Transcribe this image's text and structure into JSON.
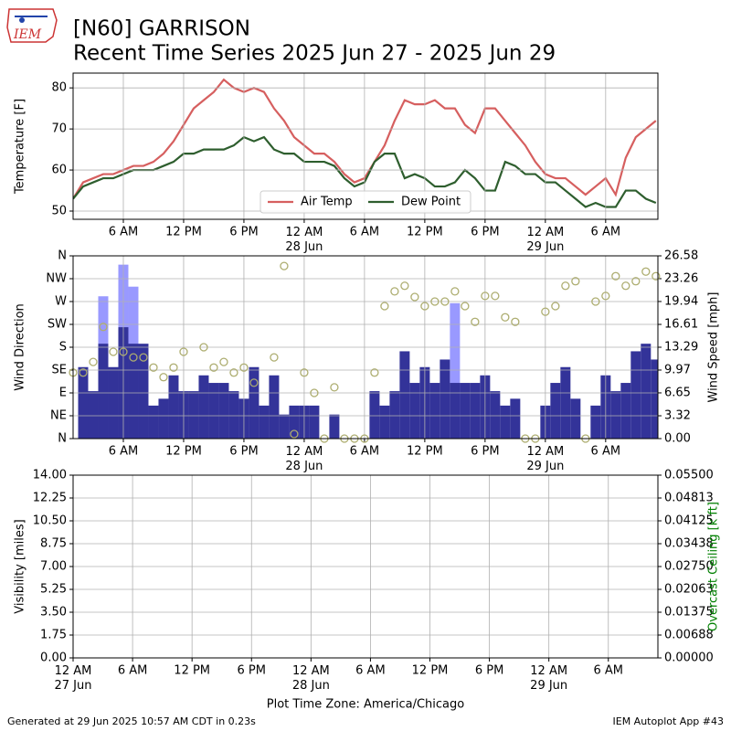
{
  "header": {
    "logo": "IEM",
    "title": "[N60] GARRISON",
    "subtitle": "Recent Time Series 2025 Jun 27 - 2025 Jun 29"
  },
  "footer": {
    "generated": "Generated at 29 Jun 2025 10:57 AM CDT in 0.23s",
    "app": "IEM Autoplot App #43"
  },
  "chart_data": [
    {
      "type": "line",
      "ylabel": "Temperature [F]",
      "legend": "lower center",
      "grid": true,
      "x": [
        1,
        2,
        3,
        4,
        5,
        6,
        7,
        8,
        9,
        10,
        11,
        12,
        13,
        14,
        15,
        16,
        17,
        18,
        19,
        20,
        21,
        22,
        23,
        24,
        25,
        26,
        27,
        28,
        29,
        30,
        31,
        32,
        33,
        34,
        35,
        36,
        37,
        38,
        39,
        40,
        41,
        42,
        43,
        44,
        45,
        46,
        47,
        48,
        49,
        50,
        51,
        52,
        53,
        54,
        55,
        56,
        57,
        58,
        59
      ],
      "xlim": [
        1,
        59.2
      ],
      "xticks": [
        {
          "value": 6,
          "label": "6 AM"
        },
        {
          "value": 12,
          "label": "12 PM"
        },
        {
          "value": 18,
          "label": "6 PM"
        },
        {
          "value": 24,
          "label": "12 AM\n28 Jun"
        },
        {
          "value": 30,
          "label": "6 AM"
        },
        {
          "value": 36,
          "label": "12 PM"
        },
        {
          "value": 42,
          "label": "6 PM"
        },
        {
          "value": 48,
          "label": "12 AM\n29 Jun"
        },
        {
          "value": 54,
          "label": "6 AM"
        }
      ],
      "ylim": [
        48,
        83.6
      ],
      "yticks": [
        50,
        60,
        70,
        80
      ],
      "series": [
        {
          "name": "Air Temp",
          "color": "#d65f5f",
          "values": [
            53,
            57,
            58,
            59,
            59,
            60,
            61,
            61,
            62,
            64,
            67,
            71,
            75,
            77,
            79,
            82,
            80,
            79,
            80,
            79,
            75,
            72,
            68,
            66,
            64,
            64,
            62,
            59,
            57,
            58,
            62,
            66,
            72,
            77,
            76,
            76,
            77,
            75,
            75,
            71,
            69,
            75,
            75,
            72,
            69,
            66,
            62,
            59,
            58,
            58,
            56,
            54,
            56,
            58,
            54,
            63,
            68,
            70,
            72
          ]
        },
        {
          "name": "Dew Point",
          "color": "#2e5e2e",
          "values": [
            53,
            56,
            57,
            58,
            58,
            59,
            60,
            60,
            60,
            61,
            62,
            64,
            64,
            65,
            65,
            65,
            66,
            68,
            67,
            68,
            65,
            64,
            64,
            62,
            62,
            62,
            61,
            58,
            56,
            57,
            62,
            64,
            64,
            58,
            59,
            58,
            56,
            56,
            57,
            60,
            58,
            55,
            55,
            62,
            61,
            59,
            59,
            57,
            57,
            55,
            53,
            51,
            52,
            51,
            51,
            55,
            55,
            53,
            52
          ]
        }
      ]
    },
    {
      "type": "bar",
      "ylabel": "Wind Direction",
      "y2label": "Wind Speed [mph]",
      "grid": true,
      "x": [
        1,
        2,
        3,
        4,
        5,
        6,
        7,
        8,
        9,
        10,
        11,
        12,
        13,
        14,
        15,
        16,
        17,
        18,
        19,
        20,
        21,
        22,
        23,
        24,
        25,
        26,
        27,
        28,
        29,
        30,
        31,
        32,
        33,
        34,
        35,
        36,
        37,
        38,
        39,
        40,
        41,
        42,
        43,
        44,
        45,
        46,
        47,
        48,
        49,
        50,
        51,
        52,
        53,
        54,
        55,
        56,
        57,
        58,
        59
      ],
      "xlim": [
        1,
        59.2
      ],
      "xticks": [
        {
          "value": 6,
          "label": "6 AM"
        },
        {
          "value": 12,
          "label": "12 PM"
        },
        {
          "value": 18,
          "label": "6 PM"
        },
        {
          "value": 24,
          "label": "12 AM\n28 Jun"
        },
        {
          "value": 30,
          "label": "6 AM"
        },
        {
          "value": 36,
          "label": "12 PM"
        },
        {
          "value": 42,
          "label": "6 PM"
        },
        {
          "value": 48,
          "label": "12 AM\n29 Jun"
        },
        {
          "value": 54,
          "label": "6 AM"
        }
      ],
      "ylim": [
        0,
        360
      ],
      "yticks": [
        {
          "value": 0,
          "label": "N"
        },
        {
          "value": 45,
          "label": "NE"
        },
        {
          "value": 90,
          "label": "E"
        },
        {
          "value": 135,
          "label": "SE"
        },
        {
          "value": 180,
          "label": "S"
        },
        {
          "value": 225,
          "label": "SW"
        },
        {
          "value": 270,
          "label": "W"
        },
        {
          "value": 315,
          "label": "NW"
        },
        {
          "value": 360,
          "label": "N"
        }
      ],
      "y2lim": [
        0,
        26.58
      ],
      "y2ticks": [
        {
          "value": 0,
          "label": "0.00"
        },
        3.32,
        6.65,
        9.97,
        13.29,
        16.61,
        19.94,
        23.26,
        26.58
      ],
      "series": [
        {
          "kind": "bar",
          "axis": "y2",
          "color": "#9999ff",
          "values": [
            null,
            null,
            null,
            20.7,
            null,
            25.3,
            22.1,
            null,
            null,
            null,
            null,
            null,
            null,
            null,
            null,
            null,
            null,
            null,
            null,
            null,
            null,
            null,
            null,
            null,
            null,
            null,
            null,
            null,
            null,
            null,
            null,
            null,
            null,
            null,
            null,
            null,
            null,
            null,
            19.7,
            null,
            null,
            null,
            null,
            null,
            null,
            null,
            null,
            null,
            null,
            null,
            null,
            null,
            null,
            null,
            null,
            null,
            null,
            null,
            null
          ]
        },
        {
          "kind": "bar",
          "axis": "y2",
          "color": "#333399",
          "values": [
            null,
            10.4,
            6.9,
            13.8,
            10.4,
            16.2,
            13.8,
            13.8,
            4.8,
            5.8,
            9.2,
            6.9,
            6.9,
            9.2,
            8.1,
            8.1,
            6.9,
            5.8,
            10.4,
            4.8,
            9.2,
            3.5,
            4.8,
            4.8,
            4.8,
            0,
            3.5,
            0,
            0,
            0,
            6.9,
            4.8,
            6.9,
            12.7,
            8.1,
            10.4,
            8.1,
            11.5,
            8.1,
            8.1,
            8.1,
            9.2,
            6.9,
            4.8,
            5.8,
            0,
            0,
            4.8,
            8.1,
            10.4,
            5.8,
            0,
            4.8,
            9.2,
            6.9,
            8.1,
            12.7,
            13.8,
            11.5
          ]
        },
        {
          "kind": "scatter",
          "color": "#adad70",
          "values": [
            130,
            130,
            151,
            220,
            171,
            171,
            160,
            160,
            140,
            121,
            140,
            171,
            null,
            180,
            140,
            151,
            130,
            140,
            110,
            null,
            160,
            340,
            9,
            130,
            90,
            0,
            101,
            0,
            0,
            0,
            130,
            261,
            290,
            301,
            279,
            261,
            270,
            270,
            290,
            261,
            230,
            281,
            281,
            239,
            230,
            0,
            0,
            250,
            261,
            301,
            310,
            0,
            270,
            281,
            320,
            301,
            310,
            329,
            320
          ]
        }
      ]
    },
    {
      "type": "line",
      "ylabel": "Visibility [miles]",
      "y2label": "Overcast Ceiling [k ft]",
      "y2color": "#008000",
      "xlabel": "Plot Time Zone: America/Chicago",
      "grid": true,
      "xlim": [
        0,
        59
      ],
      "xticks": [
        {
          "value": 0,
          "label": "12 AM\n27 Jun"
        },
        {
          "value": 6,
          "label": "6 AM"
        },
        {
          "value": 12,
          "label": "12 PM"
        },
        {
          "value": 18,
          "label": "6 PM"
        },
        {
          "value": 24,
          "label": "12 AM\n28 Jun"
        },
        {
          "value": 30,
          "label": "6 AM"
        },
        {
          "value": 36,
          "label": "12 PM"
        },
        {
          "value": 42,
          "label": "6 PM"
        },
        {
          "value": 48,
          "label": "12 AM\n29 Jun"
        },
        {
          "value": 54,
          "label": "6 AM"
        }
      ],
      "ylim": [
        0,
        14
      ],
      "yticks": [
        {
          "value": 0,
          "label": "0.00"
        },
        1.75,
        {
          "value": 3.5,
          "label": "3.50"
        },
        5.25,
        {
          "value": 7,
          "label": "7.00"
        },
        8.75,
        {
          "value": 10.5,
          "label": "10.50"
        },
        12.25,
        {
          "value": 14,
          "label": "14.00"
        }
      ],
      "y2lim": [
        0,
        0.055
      ],
      "y2ticks": [
        {
          "value": 0,
          "label": "0.00000"
        },
        {
          "value": 0.006875,
          "label": "0.00688"
        },
        0.01375,
        {
          "value": 0.020625,
          "label": "0.02063"
        },
        {
          "value": 0.0275,
          "label": "0.02750"
        },
        {
          "value": 0.034375,
          "label": "0.03438"
        },
        0.04125,
        {
          "value": 0.048125,
          "label": "0.04813"
        },
        {
          "value": 0.055,
          "label": "0.05500"
        }
      ],
      "series": []
    }
  ]
}
